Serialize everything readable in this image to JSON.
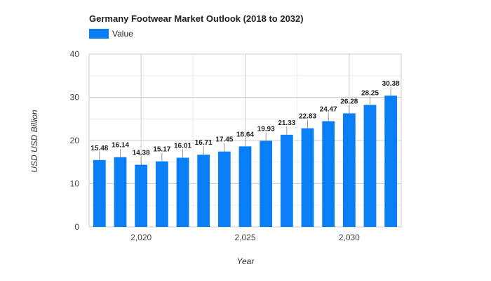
{
  "chart_data": {
    "type": "bar",
    "title": "Germany Footwear Market Outlook (2018 to 2032)",
    "xlabel": "Year",
    "ylabel": "USD USD Billion",
    "legend": {
      "position": "top-left",
      "entries": [
        "Value"
      ]
    },
    "grid": true,
    "ylim": [
      0,
      40
    ],
    "yticks": [
      0,
      10,
      20,
      30,
      40
    ],
    "xlim": [
      2017.5,
      2032.5
    ],
    "xticks": [
      2020,
      2025,
      2030
    ],
    "xtick_labels": [
      "2,020",
      "2,025",
      "2,030"
    ],
    "x": [
      2018,
      2019,
      2020,
      2021,
      2022,
      2023,
      2024,
      2025,
      2026,
      2027,
      2028,
      2029,
      2030,
      2031,
      2032
    ],
    "series": [
      {
        "name": "Value",
        "color": "#0a7ff5",
        "values": [
          15.48,
          16.14,
          14.38,
          15.17,
          16.01,
          16.71,
          17.45,
          18.64,
          19.93,
          21.33,
          22.83,
          24.47,
          26.28,
          28.25,
          30.38
        ],
        "labels": [
          "15.48",
          "16.14",
          "14.38",
          "15.17",
          "16.01",
          "16.71",
          "17.45",
          "18.64",
          "19.93",
          "21.33",
          "22.83",
          "24.47",
          "26.28",
          "28.25",
          "30.38"
        ]
      }
    ]
  }
}
